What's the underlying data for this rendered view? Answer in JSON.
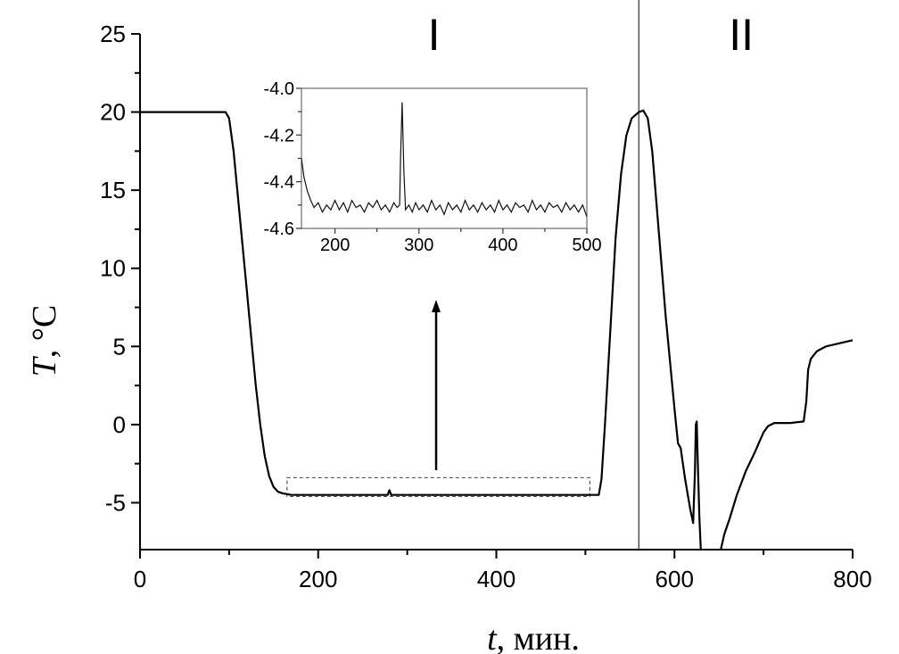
{
  "chart_data": {
    "type": "line",
    "xlabel_var": "t",
    "xlabel_unit": ", мин.",
    "ylabel_var": "T",
    "ylabel_unit": ", °C",
    "xlim": [
      0,
      800
    ],
    "ylim": [
      -8,
      25
    ],
    "xticks": [
      "0",
      "200",
      "400",
      "600",
      "800"
    ],
    "yticks": [
      "25",
      "20",
      "15",
      "10",
      "5",
      "0",
      "-5"
    ],
    "regions": [
      {
        "label": "I",
        "x": 330
      },
      {
        "label": "II",
        "x": 675
      }
    ],
    "divider_x": 560,
    "zoom_box": {
      "x": [
        165,
        505
      ],
      "y": [
        -4.6,
        -3.4
      ]
    },
    "series": [
      {
        "points": [
          [
            0,
            20
          ],
          [
            30,
            20
          ],
          [
            60,
            20
          ],
          [
            96,
            20
          ],
          [
            100,
            19.6
          ],
          [
            105,
            17.5
          ],
          [
            110,
            14.5
          ],
          [
            115,
            11.5
          ],
          [
            120,
            8.5
          ],
          [
            125,
            5.5
          ],
          [
            130,
            2.5
          ],
          [
            135,
            0
          ],
          [
            140,
            -2
          ],
          [
            145,
            -3.3
          ],
          [
            150,
            -4
          ],
          [
            155,
            -4.3
          ],
          [
            160,
            -4.4
          ],
          [
            170,
            -4.5
          ],
          [
            200,
            -4.5
          ],
          [
            250,
            -4.5
          ],
          [
            278,
            -4.5
          ],
          [
            280,
            -4.2
          ],
          [
            282,
            -4.5
          ],
          [
            300,
            -4.5
          ],
          [
            350,
            -4.5
          ],
          [
            400,
            -4.5
          ],
          [
            450,
            -4.5
          ],
          [
            500,
            -4.5
          ],
          [
            515,
            -4.5
          ],
          [
            518,
            -3.5
          ],
          [
            522,
            0
          ],
          [
            528,
            6
          ],
          [
            534,
            12
          ],
          [
            540,
            16
          ],
          [
            546,
            18.5
          ],
          [
            552,
            19.6
          ],
          [
            560,
            20
          ],
          [
            565,
            20.1
          ],
          [
            570,
            19.6
          ],
          [
            575,
            17.5
          ],
          [
            580,
            14
          ],
          [
            585,
            10.5
          ],
          [
            590,
            7
          ],
          [
            595,
            4
          ],
          [
            600,
            1
          ],
          [
            604,
            -1.2
          ],
          [
            607,
            -1.5
          ],
          [
            612,
            -3.5
          ],
          [
            618,
            -5.5
          ],
          [
            621,
            -6.3
          ],
          [
            623,
            -3
          ],
          [
            624,
            0
          ],
          [
            625,
            0.2
          ],
          [
            626,
            -2
          ],
          [
            628,
            -6
          ],
          [
            630,
            -8.5
          ]
        ]
      },
      {
        "points": [
          [
            652,
            -8
          ],
          [
            656,
            -7
          ],
          [
            662,
            -6
          ],
          [
            670,
            -4.5
          ],
          [
            680,
            -3
          ],
          [
            690,
            -1.8
          ],
          [
            700,
            -0.5
          ],
          [
            705,
            -0.1
          ],
          [
            712,
            0.1
          ],
          [
            730,
            0.1
          ],
          [
            745,
            0.2
          ],
          [
            748,
            1.5
          ],
          [
            750,
            3.5
          ],
          [
            753,
            4.2
          ],
          [
            760,
            4.7
          ],
          [
            770,
            5
          ],
          [
            785,
            5.2
          ],
          [
            800,
            5.4
          ]
        ]
      }
    ],
    "inset": {
      "xlim": [
        160,
        500
      ],
      "ylim": [
        -4.6,
        -4.0
      ],
      "xticks": [
        "200",
        "300",
        "400",
        "500"
      ],
      "yticks": [
        "-4.0",
        "-4.2",
        "-4.4",
        "-4.6"
      ],
      "points": [
        [
          160,
          -4.3
        ],
        [
          163,
          -4.38
        ],
        [
          167,
          -4.44
        ],
        [
          171,
          -4.48
        ],
        [
          175,
          -4.51
        ],
        [
          180,
          -4.49
        ],
        [
          185,
          -4.53
        ],
        [
          190,
          -4.5
        ],
        [
          195,
          -4.52
        ],
        [
          200,
          -4.48
        ],
        [
          205,
          -4.52
        ],
        [
          210,
          -4.49
        ],
        [
          215,
          -4.53
        ],
        [
          220,
          -4.48
        ],
        [
          225,
          -4.51
        ],
        [
          230,
          -4.5
        ],
        [
          235,
          -4.53
        ],
        [
          240,
          -4.49
        ],
        [
          245,
          -4.51
        ],
        [
          250,
          -4.48
        ],
        [
          255,
          -4.52
        ],
        [
          260,
          -4.5
        ],
        [
          265,
          -4.53
        ],
        [
          270,
          -4.49
        ],
        [
          274,
          -4.51
        ],
        [
          277,
          -4.5
        ],
        [
          278,
          -4.3
        ],
        [
          280,
          -4.06
        ],
        [
          282,
          -4.35
        ],
        [
          284,
          -4.52
        ],
        [
          288,
          -4.5
        ],
        [
          292,
          -4.53
        ],
        [
          296,
          -4.49
        ],
        [
          300,
          -4.52
        ],
        [
          305,
          -4.5
        ],
        [
          310,
          -4.53
        ],
        [
          315,
          -4.48
        ],
        [
          320,
          -4.52
        ],
        [
          325,
          -4.5
        ],
        [
          330,
          -4.54
        ],
        [
          335,
          -4.49
        ],
        [
          340,
          -4.52
        ],
        [
          345,
          -4.5
        ],
        [
          350,
          -4.53
        ],
        [
          355,
          -4.48
        ],
        [
          360,
          -4.52
        ],
        [
          365,
          -4.5
        ],
        [
          370,
          -4.53
        ],
        [
          375,
          -4.49
        ],
        [
          380,
          -4.52
        ],
        [
          385,
          -4.5
        ],
        [
          390,
          -4.53
        ],
        [
          395,
          -4.48
        ],
        [
          400,
          -4.52
        ],
        [
          405,
          -4.5
        ],
        [
          410,
          -4.53
        ],
        [
          415,
          -4.49
        ],
        [
          420,
          -4.51
        ],
        [
          425,
          -4.5
        ],
        [
          430,
          -4.53
        ],
        [
          435,
          -4.48
        ],
        [
          440,
          -4.52
        ],
        [
          445,
          -4.5
        ],
        [
          450,
          -4.53
        ],
        [
          455,
          -4.49
        ],
        [
          460,
          -4.51
        ],
        [
          465,
          -4.5
        ],
        [
          470,
          -4.53
        ],
        [
          475,
          -4.49
        ],
        [
          480,
          -4.52
        ],
        [
          485,
          -4.5
        ],
        [
          490,
          -4.53
        ],
        [
          495,
          -4.5
        ],
        [
          500,
          -4.55
        ]
      ]
    }
  }
}
